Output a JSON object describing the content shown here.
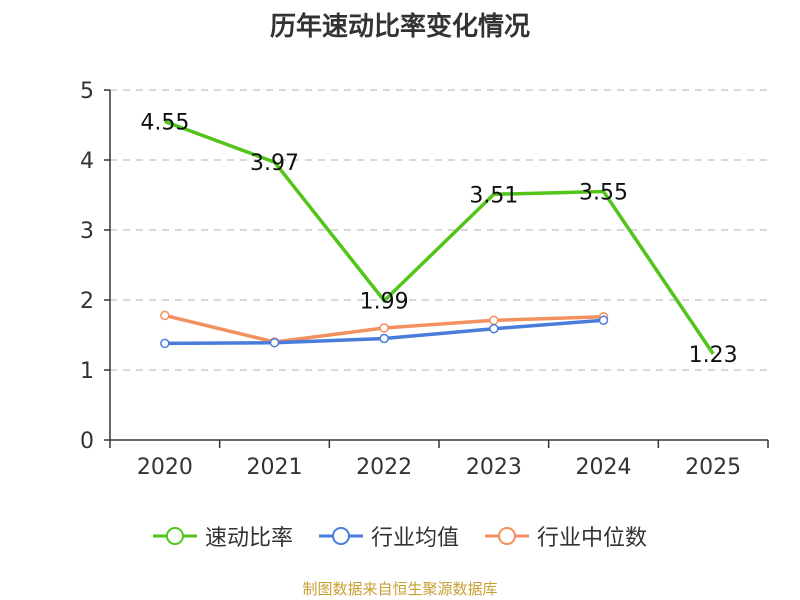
{
  "colors": {
    "series": [
      "#52c41a",
      "#4a7cdc",
      "#f39060"
    ],
    "axis": "#333333",
    "grid": "#cccccc",
    "source": "#c8a032"
  },
  "source_note": "制图数据来自恒生聚源数据库",
  "chart_data": {
    "type": "line",
    "title": "历年速动比率变化情况",
    "xlabel": "",
    "ylabel": "",
    "categories": [
      "2020",
      "2021",
      "2022",
      "2023",
      "2024",
      "2025"
    ],
    "ylim": [
      0,
      5
    ],
    "yticks": [
      "0",
      "1",
      "2",
      "3",
      "4",
      "5"
    ],
    "grid": true,
    "legend_position": "bottom",
    "series": [
      {
        "name": "速动比率",
        "values": [
          4.55,
          3.97,
          1.99,
          3.51,
          3.55,
          1.23
        ],
        "labels": [
          "4.55",
          "3.97",
          "1.99",
          "3.51",
          "3.55",
          "1.23"
        ]
      },
      {
        "name": "行业均值",
        "values": [
          1.38,
          1.39,
          1.45,
          1.59,
          1.71,
          null
        ]
      },
      {
        "name": "行业中位数",
        "values": [
          1.78,
          1.4,
          1.6,
          1.71,
          1.76,
          null
        ]
      }
    ]
  }
}
